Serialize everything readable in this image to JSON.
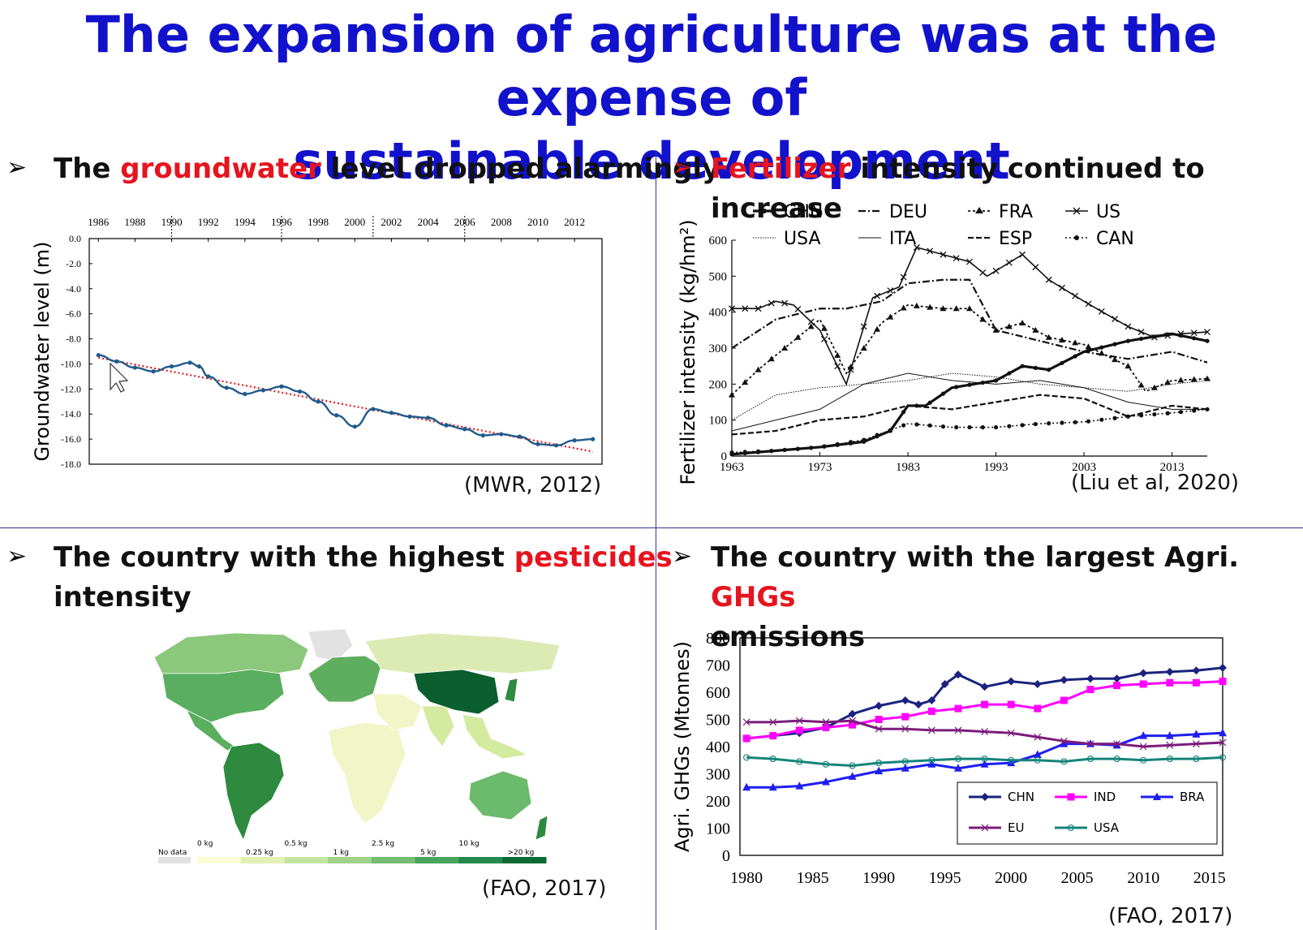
{
  "title_line1": "The expansion of agriculture was at the expense of",
  "title_line2": "sustainable development",
  "bullet_glyph": "➢",
  "panels": {
    "groundwater": {
      "heading_pre": "The ",
      "heading_hl": "groundwater",
      "heading_post": " level dropped alarmingly",
      "source": "(MWR, 2012)"
    },
    "fertilizer": {
      "heading_hl": "Fertilizer",
      "heading_post": " intensity continued to increase",
      "source": "(Liu et al, 2020)"
    },
    "pesticides": {
      "heading_pre": "The country with the highest ",
      "heading_hl": "pesticides",
      "heading_line2": "intensity",
      "source": "(FAO, 2017)",
      "legend_no_data": "No data",
      "legend_upper_labels": [
        "0 kg",
        "0.5 kg",
        "2.5 kg",
        "10 kg"
      ],
      "legend_lower_labels": [
        "0.25 kg",
        "1 kg",
        "5 kg",
        ">20 kg"
      ],
      "legend_colors": [
        "#fbfbd6",
        "#e2f0b6",
        "#c2e3a1",
        "#9fd28b",
        "#74bd73",
        "#48a45f",
        "#24894a",
        "#0b6a34"
      ],
      "map_colors": {
        "no_data": "#e2e2e2",
        "china": "#0b5e2e",
        "brazil": "#2d8a3f",
        "usa": "#5aae5f",
        "canada": "#8bc87b",
        "africa": "#f2f5c8",
        "europe": "#5fae5f",
        "russia": "#dcebb4",
        "australia": "#6cba6c",
        "india": "#d3ea9f"
      }
    },
    "ghg": {
      "heading_pre": "The country with the largest Agri. ",
      "heading_hl": "GHGs",
      "heading_line2": "emissions",
      "source": "(FAO, 2017)"
    }
  },
  "chart_data": [
    {
      "type": "line",
      "ylabel": "Groundwater level (m)",
      "x_ticks": [
        "1986",
        "1988",
        "1990",
        "1992",
        "1994",
        "1996",
        "1998",
        "2000",
        "2002",
        "2004",
        "2006",
        "2008",
        "2010",
        "2012"
      ],
      "y_ticks": [
        "0.0",
        "-2.0",
        "-4.0",
        "-6.0",
        "-8.0",
        "-10.0",
        "-12.0",
        "-14.0",
        "-16.0",
        "-18.0"
      ],
      "ylim": [
        -18,
        0
      ],
      "xlim": [
        1985.5,
        2013.5
      ],
      "series": [
        {
          "x": [
            1986,
            1987,
            1988,
            1989,
            1990,
            1991,
            1991.5,
            1992,
            1993,
            1994,
            1995,
            1996,
            1997,
            1998,
            1999,
            2000,
            2001,
            2002,
            2003,
            2004,
            2005,
            2006,
            2007,
            2008,
            2009,
            2010,
            2011,
            2012,
            2013
          ],
          "values": [
            -9.3,
            -9.8,
            -10.3,
            -10.6,
            -10.2,
            -9.9,
            -10.2,
            -11.0,
            -11.9,
            -12.4,
            -12.1,
            -11.8,
            -12.2,
            -13.0,
            -14.1,
            -15.0,
            -13.6,
            -13.9,
            -14.2,
            -14.3,
            -14.9,
            -15.2,
            -15.7,
            -15.6,
            -15.8,
            -16.4,
            -16.5,
            -16.1,
            -16.0
          ]
        }
      ],
      "trend": {
        "x": [
          1986,
          2013
        ],
        "values": [
          -9.5,
          -17.0
        ]
      },
      "grid": false,
      "dashed_markers_x": [
        1990,
        1996,
        2001,
        2006
      ]
    },
    {
      "type": "line",
      "ylabel": "Fertilizer intensity (kg/hm²)",
      "x_ticks": [
        "1963",
        "1973",
        "1983",
        "1993",
        "2003",
        "2013"
      ],
      "y_ticks": [
        "0",
        "100",
        "200",
        "300",
        "400",
        "500",
        "600"
      ],
      "ylim": [
        0,
        600
      ],
      "xlim": [
        1963,
        2017
      ],
      "legend": [
        [
          "CHN",
          "DEU",
          "FRA",
          "US"
        ],
        [
          "USA",
          "ITA",
          "ESP",
          "CAN"
        ]
      ],
      "series": [
        {
          "name": "CHN",
          "x": [
            1963,
            1968,
            1973,
            1978,
            1981,
            1983,
            1985,
            1988,
            1993,
            1996,
            1999,
            2003,
            2008,
            2013,
            2017
          ],
          "values": [
            5,
            15,
            25,
            40,
            70,
            140,
            140,
            190,
            210,
            250,
            240,
            290,
            320,
            340,
            320
          ]
        },
        {
          "name": "US",
          "x": [
            1963,
            1966,
            1968,
            1970,
            1973,
            1976,
            1979,
            1982,
            1984,
            1987,
            1990,
            1992,
            1996,
            1999,
            2003,
            2008,
            2011,
            2014,
            2017
          ],
          "values": [
            410,
            410,
            430,
            420,
            350,
            200,
            440,
            470,
            580,
            560,
            540,
            500,
            560,
            490,
            430,
            360,
            330,
            340,
            345
          ]
        },
        {
          "name": "FRA",
          "x": [
            1963,
            1966,
            1970,
            1973,
            1976,
            1980,
            1983,
            1987,
            1990,
            1993,
            1996,
            1999,
            2003,
            2008,
            2010,
            2013,
            2017
          ],
          "values": [
            170,
            240,
            320,
            380,
            230,
            370,
            420,
            410,
            410,
            350,
            370,
            330,
            310,
            250,
            180,
            210,
            215
          ]
        },
        {
          "name": "DEU",
          "x": [
            1963,
            1968,
            1973,
            1976,
            1980,
            1983,
            1987,
            1990,
            1993,
            1998,
            2003,
            2008,
            2013,
            2017
          ],
          "values": [
            300,
            380,
            410,
            410,
            430,
            480,
            490,
            490,
            350,
            320,
            290,
            270,
            290,
            260
          ]
        },
        {
          "name": "ESP",
          "x": [
            1963,
            1968,
            1973,
            1978,
            1983,
            1988,
            1993,
            1998,
            2003,
            2008,
            2013,
            2017
          ],
          "values": [
            60,
            70,
            100,
            110,
            140,
            130,
            150,
            170,
            160,
            110,
            140,
            130
          ]
        },
        {
          "name": "USA",
          "x": [
            1963,
            1968,
            1973,
            1978,
            1983,
            1988,
            1993,
            1998,
            2003,
            2008,
            2013,
            2017
          ],
          "values": [
            100,
            170,
            190,
            200,
            210,
            230,
            220,
            200,
            190,
            180,
            200,
            210
          ]
        },
        {
          "name": "ITA",
          "x": [
            1963,
            1968,
            1973,
            1978,
            1983,
            1988,
            1993,
            1998,
            2003,
            2008,
            2013,
            2017
          ],
          "values": [
            70,
            100,
            130,
            200,
            230,
            210,
            200,
            210,
            190,
            150,
            130,
            130
          ]
        },
        {
          "name": "CAN",
          "x": [
            1963,
            1968,
            1973,
            1978,
            1983,
            1988,
            1993,
            1998,
            2003,
            2008,
            2013,
            2017
          ],
          "values": [
            10,
            15,
            25,
            45,
            90,
            80,
            80,
            90,
            95,
            110,
            120,
            130
          ]
        }
      ]
    },
    {
      "type": "line",
      "ylabel": "Agri. GHGs (Mtonnes)",
      "x_ticks": [
        "1980",
        "1985",
        "1990",
        "1995",
        "2000",
        "2005",
        "2010",
        "2015"
      ],
      "y_ticks": [
        "0",
        "100",
        "200",
        "300",
        "400",
        "500",
        "600",
        "700",
        "800"
      ],
      "ylim": [
        0,
        800
      ],
      "xlim": [
        1979.5,
        2016
      ],
      "series": [
        {
          "name": "CHN",
          "color": "#1a237e",
          "x": [
            1980,
            1982,
            1984,
            1986,
            1988,
            1990,
            1992,
            1993,
            1994,
            1995,
            1996,
            1998,
            2000,
            2002,
            2004,
            2006,
            2008,
            2010,
            2012,
            2014,
            2016
          ],
          "values": [
            430,
            440,
            450,
            470,
            520,
            550,
            570,
            555,
            570,
            630,
            665,
            620,
            640,
            630,
            645,
            650,
            650,
            670,
            675,
            680,
            690
          ]
        },
        {
          "name": "IND",
          "color": "#ff00ff",
          "x": [
            1980,
            1982,
            1984,
            1986,
            1988,
            1990,
            1992,
            1994,
            1996,
            1998,
            2000,
            2002,
            2004,
            2006,
            2008,
            2010,
            2012,
            2014,
            2016
          ],
          "values": [
            430,
            440,
            460,
            470,
            480,
            500,
            510,
            530,
            540,
            555,
            555,
            540,
            570,
            610,
            625,
            630,
            635,
            635,
            640
          ]
        },
        {
          "name": "BRA",
          "color": "#1e1ef0",
          "x": [
            1980,
            1982,
            1984,
            1986,
            1988,
            1990,
            1992,
            1994,
            1996,
            1998,
            2000,
            2002,
            2004,
            2006,
            2008,
            2010,
            2012,
            2014,
            2016
          ],
          "values": [
            250,
            250,
            255,
            270,
            290,
            310,
            320,
            335,
            320,
            335,
            340,
            370,
            410,
            410,
            405,
            440,
            440,
            445,
            450
          ]
        },
        {
          "name": "EU",
          "color": "#7b1c7b",
          "x": [
            1980,
            1982,
            1984,
            1986,
            1988,
            1990,
            1992,
            1994,
            1996,
            1998,
            2000,
            2002,
            2004,
            2006,
            2008,
            2010,
            2012,
            2014,
            2016
          ],
          "values": [
            490,
            490,
            495,
            490,
            495,
            465,
            465,
            460,
            460,
            455,
            450,
            435,
            420,
            410,
            410,
            400,
            405,
            410,
            415
          ]
        },
        {
          "name": "USA",
          "color": "#14847a",
          "x": [
            1980,
            1982,
            1984,
            1986,
            1988,
            1990,
            1992,
            1994,
            1996,
            1998,
            2000,
            2002,
            2004,
            2006,
            2008,
            2010,
            2012,
            2014,
            2016
          ],
          "values": [
            360,
            355,
            345,
            335,
            330,
            340,
            345,
            350,
            355,
            355,
            350,
            350,
            345,
            355,
            355,
            350,
            355,
            355,
            360
          ]
        }
      ],
      "legend": [
        "CHN",
        "IND",
        "BRA",
        "EU",
        "USA"
      ]
    }
  ]
}
